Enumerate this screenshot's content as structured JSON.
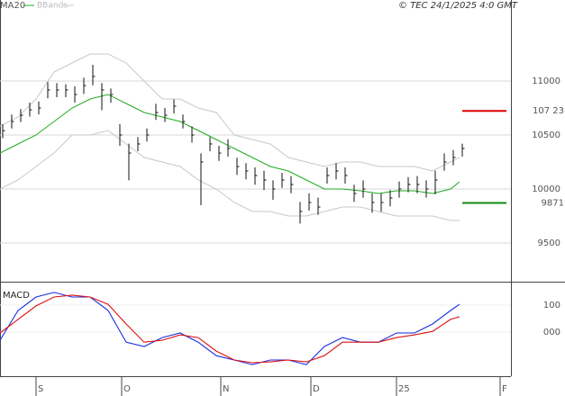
{
  "chart_data": [
    {
      "type": "ohlc",
      "title": "© TEC 24/1/2025 4:0 GMT",
      "x": [
        0,
        2,
        4,
        6,
        8,
        10,
        12,
        14,
        16,
        18,
        20,
        22,
        24,
        26,
        28,
        30,
        32,
        34,
        36,
        38,
        40,
        42,
        44,
        46,
        48,
        50,
        52,
        54,
        56,
        58,
        60,
        62,
        64,
        66,
        68,
        70,
        72,
        74,
        76,
        78,
        80,
        82,
        84,
        86,
        88,
        90,
        92,
        94,
        96,
        98,
        100,
        102
      ],
      "high": [
        10600,
        10690,
        10740,
        10800,
        10810,
        10990,
        10980,
        10970,
        10950,
        11030,
        11150,
        10980,
        10930,
        10600,
        10420,
        10480,
        10560,
        10790,
        10750,
        10830,
        10690,
        10580,
        10330,
        10480,
        10400,
        10460,
        10290,
        10240,
        10200,
        10170,
        10080,
        10150,
        10120,
        9880,
        9960,
        9920,
        10200,
        10240,
        10200,
        10040,
        10080,
        9960,
        9960,
        9990,
        10070,
        10110,
        10120,
        10080,
        10170,
        10330,
        10360,
        10420
      ],
      "low": [
        10470,
        10560,
        10620,
        10670,
        10690,
        10840,
        10850,
        10850,
        10800,
        10880,
        10960,
        10730,
        10800,
        10400,
        10080,
        10350,
        10440,
        10640,
        10620,
        10700,
        10560,
        10430,
        9850,
        10350,
        10260,
        10300,
        10130,
        10090,
        10040,
        9990,
        9900,
        10010,
        9960,
        9680,
        9800,
        9760,
        10050,
        10090,
        10050,
        9880,
        9920,
        9780,
        9790,
        9840,
        9920,
        9970,
        9960,
        9920,
        9950,
        10170,
        10220,
        10300
      ],
      "close": [
        10540,
        10625,
        10683,
        10733,
        10750,
        10917,
        10917,
        10917,
        10875,
        10958,
        11042,
        10917,
        10875,
        10500,
        10333,
        10417,
        10500,
        10708,
        10683,
        10767,
        10625,
        10500,
        10250,
        10417,
        10333,
        10375,
        10208,
        10167,
        10125,
        10083,
        10000,
        10083,
        10042,
        9792,
        9875,
        9833,
        10125,
        10167,
        10125,
        9958,
        10000,
        9875,
        9875,
        9917,
        10000,
        10042,
        10042,
        10000,
        10083,
        10250,
        10292,
        10375
      ],
      "series": [
        {
          "name": "MA20",
          "color": "#22aa22",
          "x": [
            0,
            4,
            8,
            12,
            16,
            20,
            24,
            28,
            32,
            36,
            40,
            44,
            48,
            52,
            56,
            60,
            64,
            68,
            72,
            76,
            80,
            84,
            88,
            92,
            96,
            100,
            102
          ],
          "values": [
            10333,
            10417,
            10500,
            10625,
            10750,
            10833,
            10875,
            10792,
            10708,
            10667,
            10625,
            10542,
            10458,
            10375,
            10292,
            10208,
            10167,
            10083,
            10000,
            10000,
            9983,
            9958,
            9983,
            9983,
            9958,
            10000,
            10067
          ]
        },
        {
          "name": "BBands",
          "color": "#c8c8c8",
          "x": [
            0,
            4,
            8,
            12,
            16,
            20,
            24,
            28,
            32,
            36,
            40,
            44,
            48,
            52,
            56,
            60,
            64,
            68,
            72,
            76,
            80,
            84,
            88,
            92,
            96,
            100,
            102
          ],
          "upper": [
            10583,
            10667,
            10833,
            11083,
            11167,
            11250,
            11250,
            11167,
            11000,
            10833,
            10833,
            10750,
            10708,
            10500,
            10458,
            10417,
            10292,
            10250,
            10208,
            10250,
            10250,
            10208,
            10208,
            10208,
            10167,
            10250,
            10292
          ],
          "lower": [
            10000,
            10083,
            10208,
            10333,
            10500,
            10500,
            10542,
            10417,
            10292,
            10250,
            10208,
            10083,
            10000,
            9875,
            9792,
            9792,
            9750,
            9750,
            9792,
            9833,
            9833,
            9792,
            9750,
            9750,
            9750,
            9708,
            9708
          ]
        }
      ],
      "levels": [
        {
          "price": {
            "value": 10723,
            "label": "107 23"
          },
          "color": "#dd0000"
        },
        {
          "price": 9871,
          "color": "#118811"
        }
      ],
      "xlim": [
        0,
        113.4
      ],
      "ylim": [
        9150,
        11750
      ],
      "yticks": [
        9500,
        10000,
        10500,
        11000
      ],
      "grid": true
    },
    {
      "type": "macd",
      "title": "MACD",
      "x": [
        0,
        4,
        8,
        12,
        16,
        20,
        24,
        28,
        32,
        36,
        40,
        44,
        48,
        52,
        56,
        60,
        64,
        68,
        72,
        76,
        80,
        84,
        88,
        92,
        96,
        100,
        102
      ],
      "series": [
        {
          "color": "#1a2ee0",
          "values": [
            -30,
            80,
            130,
            147,
            130,
            130,
            80,
            -37,
            -53,
            -20,
            -3,
            -37,
            -87,
            -103,
            -120,
            -103,
            -103,
            -120,
            -53,
            -20,
            -37,
            -37,
            -3,
            -3,
            30,
            80,
            103
          ]
        },
        {
          "color": "#dd1111",
          "values": [
            -3,
            47,
            97,
            130,
            137,
            130,
            103,
            30,
            -37,
            -30,
            -10,
            -20,
            -70,
            -103,
            -113,
            -110,
            -103,
            -110,
            -87,
            -37,
            -37,
            -37,
            -20,
            -10,
            3,
            47,
            57
          ]
        }
      ],
      "xlim": [
        0,
        113.4
      ],
      "ylim": [
        -163,
        170
      ],
      "yticks": [
        {
          "value": 0,
          "label": "000"
        },
        100
      ],
      "xticks": [
        {
          "value": 8,
          "label": "S"
        },
        {
          "value": 27,
          "label": "O"
        },
        {
          "value": 49,
          "label": "N"
        },
        {
          "value": 69,
          "label": "D"
        },
        {
          "value": 88,
          "label": "25"
        },
        {
          "value": 111,
          "label": "F"
        }
      ],
      "grid": true
    }
  ]
}
